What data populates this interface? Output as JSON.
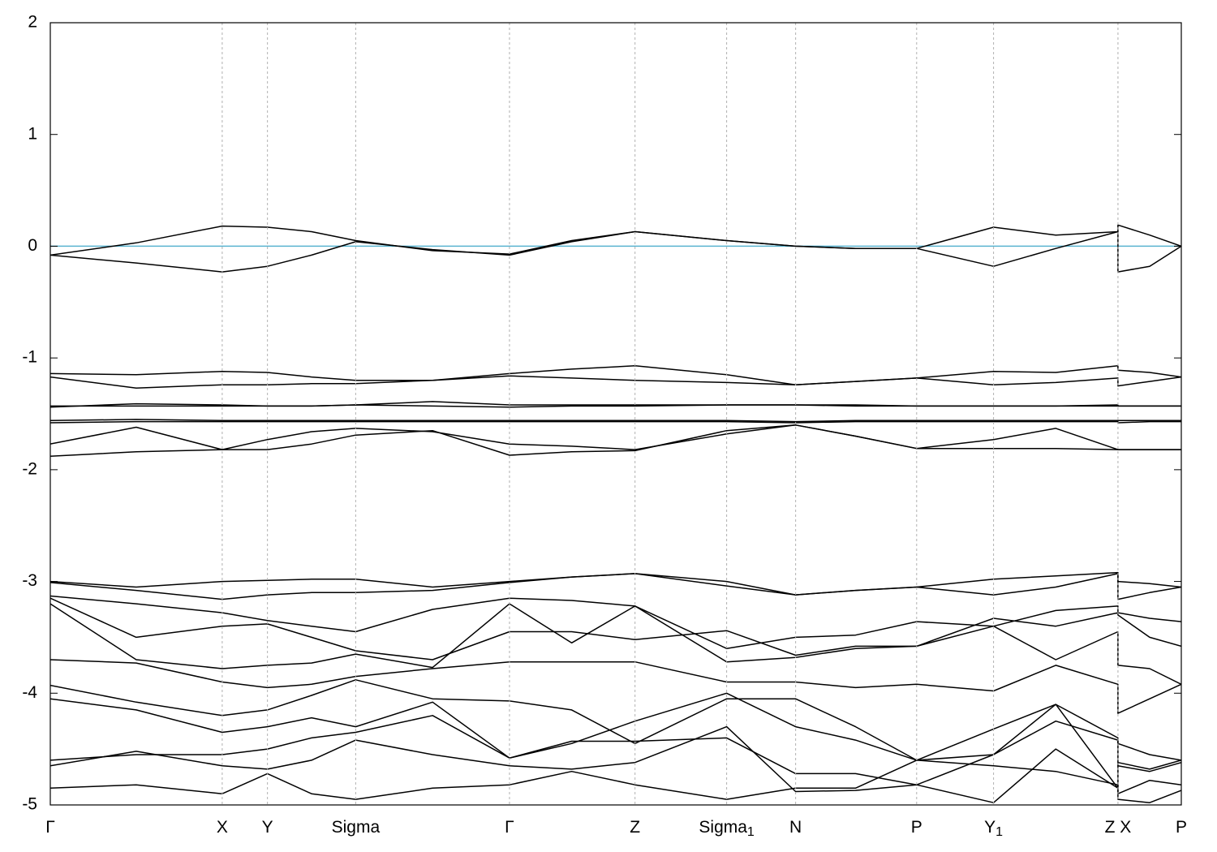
{
  "chart_data": {
    "type": "line",
    "x": [
      0,
      0.076,
      0.152,
      0.192,
      0.231,
      0.27,
      0.338,
      0.406,
      0.461,
      0.517,
      0.598,
      0.659,
      0.712,
      0.766,
      0.834,
      0.889,
      0.944,
      0.944,
      0.972,
      1.0
    ],
    "xlim": [
      0,
      1
    ],
    "xticks": [
      {
        "value": 0,
        "label": "Γ"
      },
      {
        "value": 0.152,
        "label": "X"
      },
      {
        "value": 0.192,
        "label": "Y"
      },
      {
        "value": 0.27,
        "label": "Sigma"
      },
      {
        "value": 0.406,
        "label": "Γ"
      },
      {
        "value": 0.517,
        "label": "Z"
      },
      {
        "value": 0.598,
        "label": "Sigma",
        "subscript": "1"
      },
      {
        "value": 0.659,
        "label": "N"
      },
      {
        "value": 0.766,
        "label": "P"
      },
      {
        "value": 0.834,
        "label": "Y",
        "subscript": "1"
      },
      {
        "value": 0.944,
        "label": "Z X"
      },
      {
        "value": 1.0,
        "label": "P"
      }
    ],
    "ylim": [
      -5,
      2
    ],
    "yticks": [
      -5,
      -4,
      -3,
      -2,
      -1,
      0,
      1,
      2
    ],
    "grid": true,
    "color": "#000000",
    "fermi_level": 0,
    "fermi_color": "#5ab4d0",
    "series": [
      {
        "values": [
          -0.08,
          0.03,
          0.18,
          0.17,
          0.13,
          0.05,
          -0.04,
          -0.07,
          0.05,
          0.13,
          0.05,
          0.0,
          -0.02,
          -0.02,
          0.17,
          0.1,
          0.13,
          0.19,
          0.1,
          0.0
        ]
      },
      {
        "values": [
          -0.08,
          -0.15,
          -0.23,
          -0.18,
          -0.08,
          0.04,
          -0.03,
          -0.08,
          0.04,
          0.13,
          0.05,
          0.0,
          -0.02,
          -0.02,
          -0.18,
          -0.02,
          0.13,
          -0.23,
          -0.18,
          0.0
        ]
      },
      {
        "values": [
          -1.14,
          -1.15,
          -1.12,
          -1.13,
          -1.17,
          -1.2,
          -1.2,
          -1.14,
          -1.1,
          -1.07,
          -1.15,
          -1.24,
          -1.21,
          -1.18,
          -1.12,
          -1.13,
          -1.07,
          -1.11,
          -1.13,
          -1.17
        ]
      },
      {
        "values": [
          -1.17,
          -1.27,
          -1.24,
          -1.24,
          -1.23,
          -1.23,
          -1.2,
          -1.16,
          -1.18,
          -1.2,
          -1.22,
          -1.24,
          -1.21,
          -1.18,
          -1.24,
          -1.22,
          -1.18,
          -1.25,
          -1.21,
          -1.17
        ]
      },
      {
        "values": [
          -1.43,
          -1.43,
          -1.43,
          -1.43,
          -1.43,
          -1.42,
          -1.43,
          -1.44,
          -1.43,
          -1.43,
          -1.42,
          -1.42,
          -1.43,
          -1.43,
          -1.43,
          -1.43,
          -1.43,
          -1.43,
          -1.43,
          -1.43
        ]
      },
      {
        "values": [
          -1.44,
          -1.41,
          -1.42,
          -1.43,
          -1.43,
          -1.42,
          -1.39,
          -1.42,
          -1.42,
          -1.42,
          -1.42,
          -1.42,
          -1.42,
          -1.43,
          -1.43,
          -1.43,
          -1.42,
          -1.43,
          -1.43,
          -1.43
        ]
      },
      {
        "values": [
          -1.56,
          -1.55,
          -1.56,
          -1.56,
          -1.56,
          -1.56,
          -1.56,
          -1.56,
          -1.56,
          -1.56,
          -1.56,
          -1.57,
          -1.56,
          -1.56,
          -1.56,
          -1.56,
          -1.56,
          -1.56,
          -1.56,
          -1.56
        ]
      },
      {
        "values": [
          -1.58,
          -1.57,
          -1.57,
          -1.57,
          -1.57,
          -1.57,
          -1.57,
          -1.57,
          -1.57,
          -1.57,
          -1.57,
          -1.58,
          -1.57,
          -1.57,
          -1.57,
          -1.57,
          -1.57,
          -1.58,
          -1.57,
          -1.57
        ]
      },
      {
        "values": [
          -1.77,
          -1.62,
          -1.82,
          -1.73,
          -1.66,
          -1.63,
          -1.66,
          -1.77,
          -1.79,
          -1.82,
          -1.68,
          -1.6,
          -1.7,
          -1.81,
          -1.73,
          -1.63,
          -1.82,
          -1.82,
          -1.82,
          -1.82
        ]
      },
      {
        "values": [
          -1.88,
          -1.84,
          -1.82,
          -1.82,
          -1.77,
          -1.69,
          -1.65,
          -1.87,
          -1.84,
          -1.83,
          -1.65,
          -1.6,
          -1.7,
          -1.81,
          -1.81,
          -1.81,
          -1.82,
          -1.82,
          -1.82,
          -1.82
        ]
      },
      {
        "values": [
          -3.0,
          -3.05,
          -3.0,
          -2.99,
          -2.98,
          -2.98,
          -3.05,
          -3.0,
          -2.96,
          -2.93,
          -3.0,
          -3.12,
          -3.08,
          -3.05,
          -2.98,
          -2.95,
          -2.92,
          -3.0,
          -3.02,
          -3.05
        ]
      },
      {
        "values": [
          -3.01,
          -3.08,
          -3.16,
          -3.12,
          -3.1,
          -3.1,
          -3.08,
          -3.01,
          -2.96,
          -2.93,
          -3.04,
          -3.12,
          -3.08,
          -3.05,
          -3.12,
          -3.05,
          -2.93,
          -3.16,
          -3.1,
          -3.05
        ]
      },
      {
        "values": [
          -3.13,
          -3.2,
          -3.28,
          -3.35,
          -3.4,
          -3.45,
          -3.25,
          -3.15,
          -3.17,
          -3.22,
          -3.6,
          -3.5,
          -3.48,
          -3.36,
          -3.4,
          -3.26,
          -3.22,
          -3.28,
          -3.33,
          -3.36
        ]
      },
      {
        "values": [
          -3.15,
          -3.5,
          -3.4,
          -3.38,
          -3.5,
          -3.62,
          -3.7,
          -3.45,
          -3.45,
          -3.52,
          -3.44,
          -3.66,
          -3.58,
          -3.58,
          -3.33,
          -3.4,
          -3.28,
          -3.3,
          -3.5,
          -3.58
        ]
      },
      {
        "values": [
          -3.2,
          -3.7,
          -3.78,
          -3.75,
          -3.73,
          -3.65,
          -3.77,
          -3.2,
          -3.55,
          -3.22,
          -3.72,
          -3.68,
          -3.6,
          -3.58,
          -3.4,
          -3.7,
          -3.45,
          -3.75,
          -3.78,
          -3.92
        ]
      },
      {
        "values": [
          -3.7,
          -3.73,
          -3.9,
          -3.95,
          -3.92,
          -3.85,
          -3.78,
          -3.72,
          -3.72,
          -3.72,
          -3.9,
          -3.9,
          -3.95,
          -3.92,
          -3.98,
          -3.75,
          -3.92,
          -4.18,
          -4.05,
          -3.92
        ]
      },
      {
        "values": [
          -3.93,
          -4.08,
          -4.2,
          -4.15,
          -4.02,
          -3.88,
          -4.05,
          -4.07,
          -4.15,
          -4.45,
          -4.05,
          -4.05,
          -4.3,
          -4.6,
          -4.55,
          -4.1,
          -4.4,
          -4.45,
          -4.55,
          -4.6
        ]
      },
      {
        "values": [
          -4.05,
          -4.15,
          -4.35,
          -4.3,
          -4.22,
          -4.3,
          -4.08,
          -4.58,
          -4.45,
          -4.25,
          -4.0,
          -4.3,
          -4.42,
          -4.6,
          -4.32,
          -4.1,
          -4.85,
          -4.62,
          -4.68,
          -4.6
        ]
      },
      {
        "values": [
          -4.6,
          -4.55,
          -4.55,
          -4.5,
          -4.4,
          -4.35,
          -4.2,
          -4.58,
          -4.43,
          -4.43,
          -4.4,
          -4.72,
          -4.72,
          -4.82,
          -4.55,
          -4.25,
          -4.42,
          -4.65,
          -4.7,
          -4.62
        ]
      },
      {
        "values": [
          -4.65,
          -4.52,
          -4.65,
          -4.68,
          -4.6,
          -4.42,
          -4.55,
          -4.65,
          -4.68,
          -4.62,
          -4.3,
          -4.88,
          -4.87,
          -4.82,
          -4.98,
          -4.5,
          -4.85,
          -4.9,
          -4.78,
          -4.82
        ]
      },
      {
        "values": [
          -4.85,
          -4.82,
          -4.9,
          -4.72,
          -4.9,
          -4.95,
          -4.85,
          -4.82,
          -4.7,
          -4.82,
          -4.95,
          -4.85,
          -4.85,
          -4.6,
          -4.65,
          -4.7,
          -4.82,
          -4.95,
          -4.98,
          -4.87
        ]
      }
    ]
  }
}
